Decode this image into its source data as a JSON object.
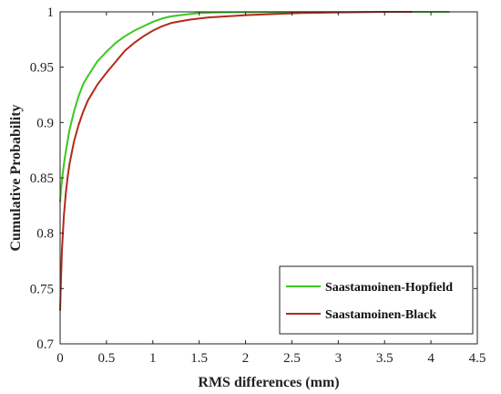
{
  "chart_data": {
    "type": "line",
    "xlabel": "RMS differences (mm)",
    "ylabel": "Cumulative Probability",
    "xlim": [
      0,
      4.5
    ],
    "ylim": [
      0.7,
      1.0
    ],
    "xticks": [
      "0",
      "0.5",
      "1",
      "1.5",
      "2",
      "2.5",
      "3",
      "3.5",
      "4",
      "4.5"
    ],
    "yticks": [
      "0.7",
      "0.75",
      "0.8",
      "0.85",
      "0.9",
      "0.95",
      "1"
    ],
    "grid": false,
    "legend_position": "bottom-right",
    "series": [
      {
        "name": "Saastamoinen-Hopfield",
        "color": "#3cc81e",
        "x": [
          0,
          0.01,
          0.03,
          0.05,
          0.08,
          0.1,
          0.15,
          0.2,
          0.25,
          0.3,
          0.4,
          0.5,
          0.6,
          0.7,
          0.8,
          0.9,
          1.0,
          1.1,
          1.2,
          1.3,
          1.4,
          1.5,
          1.7,
          2.0,
          2.5,
          3.0,
          3.5,
          4.0,
          4.2
        ],
        "y": [
          0.828,
          0.84,
          0.855,
          0.868,
          0.883,
          0.893,
          0.91,
          0.924,
          0.935,
          0.942,
          0.955,
          0.964,
          0.972,
          0.978,
          0.983,
          0.987,
          0.991,
          0.994,
          0.996,
          0.997,
          0.998,
          0.999,
          0.9995,
          0.9997,
          0.9998,
          0.9999,
          1.0,
          1.0,
          1.0
        ]
      },
      {
        "name": "Saastamoinen-Black",
        "color": "#b22a1a",
        "x": [
          0,
          0.01,
          0.02,
          0.04,
          0.06,
          0.08,
          0.1,
          0.15,
          0.2,
          0.25,
          0.3,
          0.4,
          0.5,
          0.6,
          0.7,
          0.8,
          0.9,
          1.0,
          1.1,
          1.2,
          1.4,
          1.6,
          1.8,
          2.0,
          2.3,
          2.6,
          3.0,
          3.5,
          3.8
        ],
        "y": [
          0.73,
          0.76,
          0.785,
          0.815,
          0.835,
          0.85,
          0.862,
          0.883,
          0.898,
          0.91,
          0.92,
          0.934,
          0.945,
          0.955,
          0.965,
          0.972,
          0.978,
          0.983,
          0.987,
          0.99,
          0.993,
          0.995,
          0.996,
          0.997,
          0.998,
          0.999,
          0.9995,
          1.0,
          1.0
        ]
      }
    ]
  }
}
